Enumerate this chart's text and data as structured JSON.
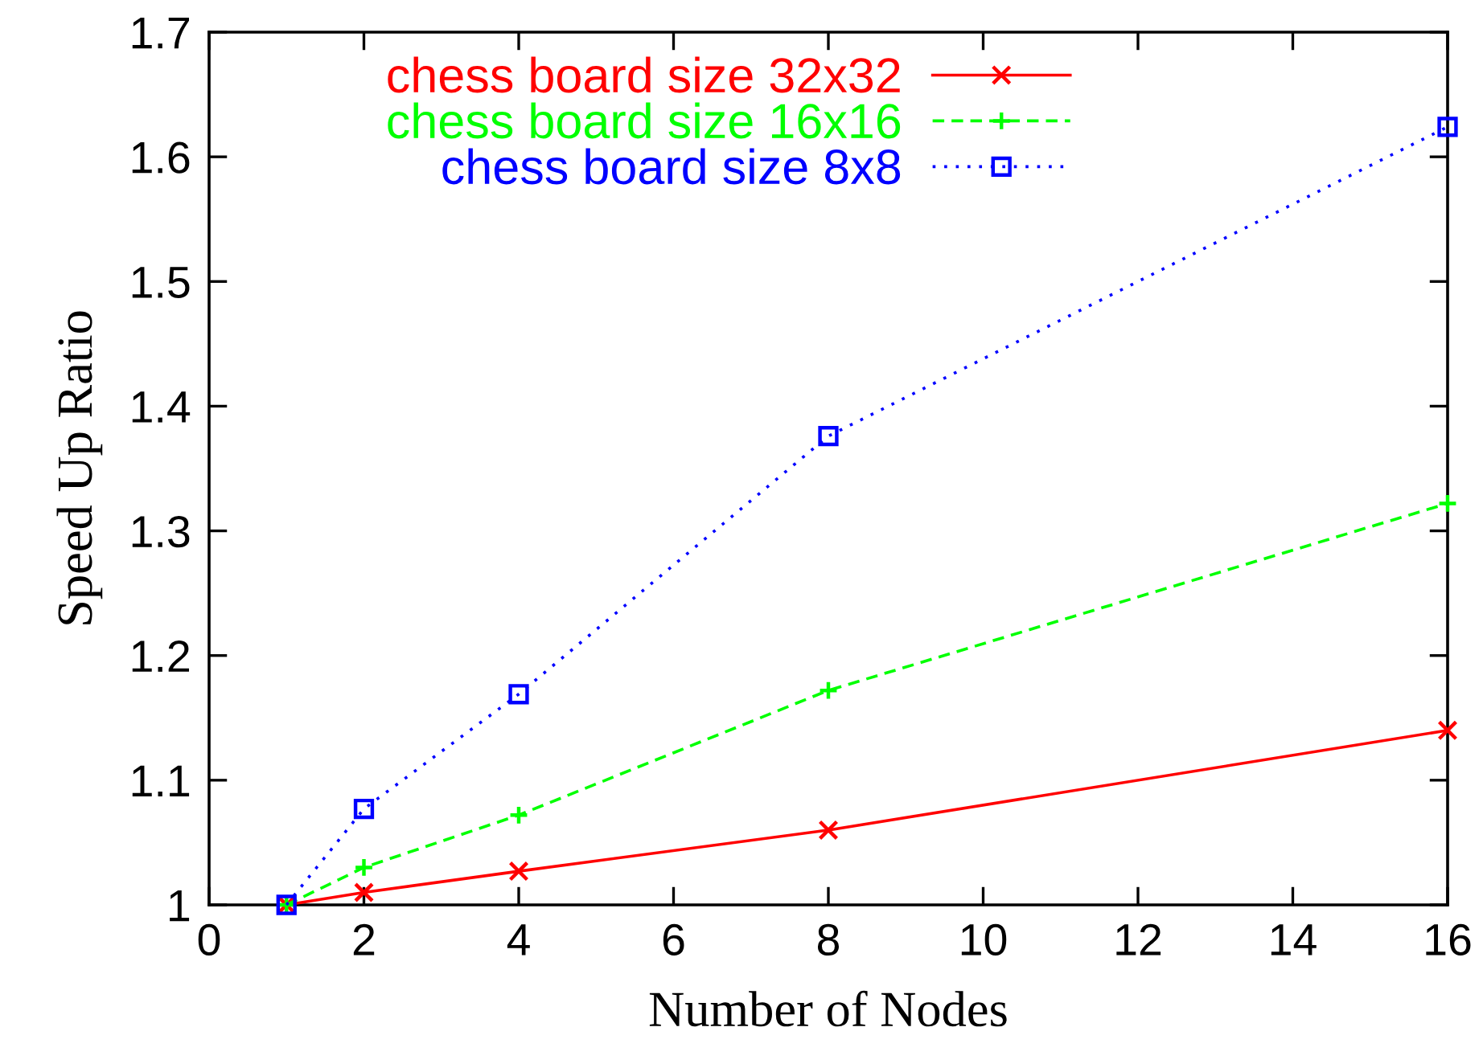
{
  "chart_data": {
    "type": "line",
    "xlabel": "Number of Nodes",
    "ylabel": "Speed Up Ratio",
    "x": [
      1,
      2,
      4,
      8,
      16
    ],
    "series": [
      {
        "name": "chess board size 32x32",
        "color": "#ff0000",
        "values": [
          1.0,
          1.01,
          1.027,
          1.06,
          1.14
        ],
        "marker": "cross",
        "line_style": "solid"
      },
      {
        "name": "chess board size 16x16",
        "color": "#00ff00",
        "values": [
          1.0,
          1.03,
          1.072,
          1.172,
          1.322
        ],
        "marker": "plus",
        "line_style": "dashed"
      },
      {
        "name": "chess board size 8x8",
        "color": "#0000ff",
        "values": [
          1.0,
          1.077,
          1.169,
          1.376,
          1.624
        ],
        "marker": "square",
        "line_style": "dotted"
      }
    ],
    "xlim": [
      0,
      16
    ],
    "xticks": [
      0,
      2,
      4,
      6,
      8,
      10,
      12,
      14,
      16
    ],
    "ylim": [
      1,
      1.7
    ],
    "yticks": [
      1,
      1.1,
      1.2,
      1.3,
      1.4,
      1.5,
      1.6,
      1.7
    ],
    "grid": false,
    "legend": "top"
  }
}
